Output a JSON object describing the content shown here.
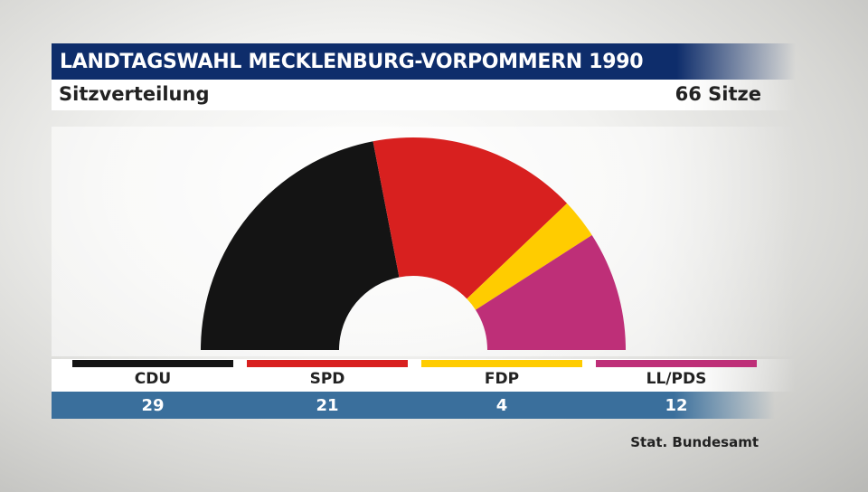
{
  "header": {
    "title": "LANDTAGSWAHL MECKLENBURG-VORPOMMERN 1990",
    "subtitle": "Sitzverteilung",
    "total": "66 Sitze"
  },
  "source": "Stat. Bundesamt",
  "chart_data": {
    "type": "pie",
    "shape": "half-donut (parliament seat distribution)",
    "title": "LANDTAGSWAHL MECKLENBURG-VORPOMMERN 1990",
    "subtitle": "Sitzverteilung",
    "total_seats": 66,
    "categories": [
      "CDU",
      "SPD",
      "FDP",
      "LL/PDS"
    ],
    "values": [
      29,
      21,
      4,
      12
    ],
    "value_labels": [
      "29",
      "21",
      "4",
      "12"
    ],
    "colors": [
      "#141414",
      "#d8201f",
      "#ffcc00",
      "#be2f78"
    ],
    "legend_placement": "bottom"
  }
}
